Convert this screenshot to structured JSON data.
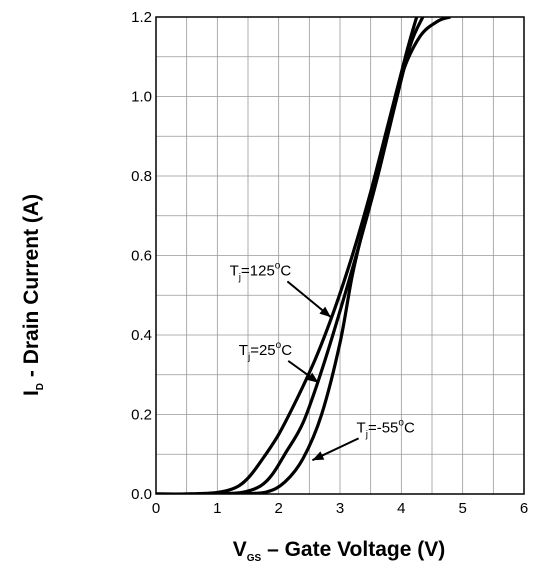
{
  "chart_data": {
    "type": "line",
    "title": "",
    "xlabel": {
      "main": "V",
      "sub": "GS",
      "rest": " – Gate Voltage (V)"
    },
    "ylabel": {
      "main": "I",
      "sub": "D",
      "rest": " - Drain Current (A)"
    },
    "xlim": [
      0,
      6
    ],
    "ylim": [
      0,
      1.2
    ],
    "xticks": [
      0,
      1,
      2,
      3,
      4,
      5,
      6
    ],
    "xtick_labels": [
      "0",
      "1",
      "2",
      "3",
      "4",
      "5",
      "6"
    ],
    "yticks": [
      0,
      0.2,
      0.4,
      0.6,
      0.8,
      1.0,
      1.2
    ],
    "ytick_labels": [
      "0.0",
      "0.2",
      "0.4",
      "0.6",
      "0.8",
      "1.0",
      "1.2"
    ],
    "grid": true,
    "series": [
      {
        "name": {
          "main": "T",
          "sub": "j",
          "mid": "=125",
          "sup": "o",
          "end": "C"
        },
        "points": [
          [
            0,
            0
          ],
          [
            0.5,
            0
          ],
          [
            1.0,
            0.004
          ],
          [
            1.3,
            0.016
          ],
          [
            1.5,
            0.04
          ],
          [
            1.7,
            0.08
          ],
          [
            2.0,
            0.15
          ],
          [
            2.3,
            0.24
          ],
          [
            2.6,
            0.34
          ],
          [
            2.9,
            0.46
          ],
          [
            3.2,
            0.6
          ],
          [
            3.5,
            0.76
          ],
          [
            3.8,
            0.94
          ],
          [
            4.1,
            1.12
          ],
          [
            4.25,
            1.2
          ]
        ],
        "label_at": [
          1.2,
          0.55
        ],
        "arrow_to": [
          2.85,
          0.445
        ]
      },
      {
        "name": {
          "main": "T",
          "sub": "j",
          "mid": "=25",
          "sup": "o",
          "end": "C"
        },
        "points": [
          [
            0,
            0
          ],
          [
            0.5,
            0
          ],
          [
            1.0,
            0.001
          ],
          [
            1.4,
            0.004
          ],
          [
            1.7,
            0.02
          ],
          [
            1.9,
            0.05
          ],
          [
            2.1,
            0.1
          ],
          [
            2.4,
            0.18
          ],
          [
            2.7,
            0.31
          ],
          [
            3.0,
            0.46
          ],
          [
            3.3,
            0.62
          ],
          [
            3.6,
            0.79
          ],
          [
            3.9,
            0.98
          ],
          [
            4.15,
            1.13
          ],
          [
            4.35,
            1.2
          ]
        ],
        "label_at": [
          1.35,
          0.35
        ],
        "arrow_to": [
          2.65,
          0.28
        ]
      },
      {
        "name": {
          "main": "T",
          "sub": "j",
          "mid": "=-55",
          "sup": "o",
          "end": "C"
        },
        "points": [
          [
            0,
            0
          ],
          [
            0.8,
            0
          ],
          [
            1.4,
            0.001
          ],
          [
            1.8,
            0.005
          ],
          [
            2.1,
            0.03
          ],
          [
            2.4,
            0.09
          ],
          [
            2.7,
            0.2
          ],
          [
            3.0,
            0.38
          ],
          [
            3.2,
            0.55
          ],
          [
            3.4,
            0.68
          ],
          [
            3.7,
            0.86
          ],
          [
            4.0,
            1.05
          ],
          [
            4.3,
            1.15
          ],
          [
            4.6,
            1.19
          ],
          [
            4.8,
            1.2
          ]
        ],
        "label_at": [
          3.27,
          0.155
        ],
        "arrow_to": [
          2.55,
          0.085
        ]
      }
    ]
  }
}
